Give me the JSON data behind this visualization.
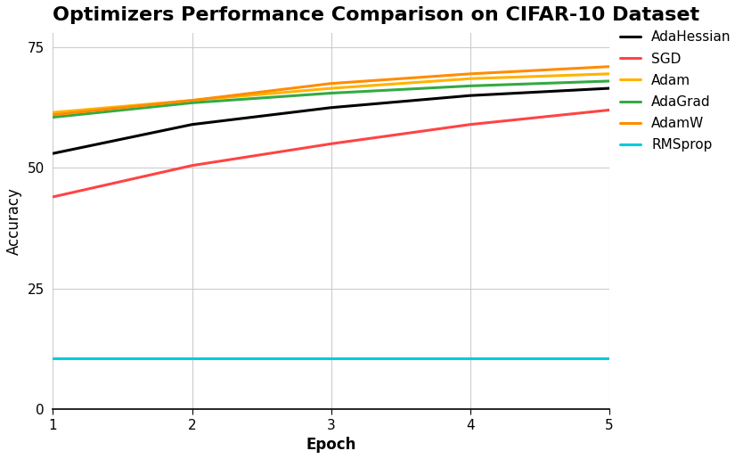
{
  "title": "Optimizers Performance Comparison on CIFAR-10 Dataset",
  "xlabel": "Epoch",
  "ylabel": "Accuracy",
  "epochs": [
    1,
    2,
    3,
    4,
    5
  ],
  "series": [
    {
      "label": "AdaHessian",
      "color": "#000000",
      "linewidth": 2.2,
      "values": [
        53.0,
        59.0,
        62.5,
        65.0,
        66.5
      ]
    },
    {
      "label": "SGD",
      "color": "#FF4444",
      "linewidth": 2.2,
      "values": [
        44.0,
        50.5,
        55.0,
        59.0,
        62.0
      ]
    },
    {
      "label": "Adam",
      "color": "#FFB300",
      "linewidth": 2.2,
      "values": [
        61.5,
        64.0,
        66.5,
        68.5,
        69.5
      ]
    },
    {
      "label": "AdaGrad",
      "color": "#33AA44",
      "linewidth": 2.2,
      "values": [
        60.5,
        63.5,
        65.5,
        67.0,
        68.0
      ]
    },
    {
      "label": "AdamW",
      "color": "#FF8C00",
      "linewidth": 2.2,
      "values": [
        61.0,
        64.0,
        67.5,
        69.5,
        71.0
      ]
    },
    {
      "label": "RMSprop",
      "color": "#00CCDD",
      "linewidth": 2.2,
      "values": [
        10.5,
        10.5,
        10.5,
        10.5,
        10.5
      ]
    }
  ],
  "xlim": [
    1,
    5
  ],
  "ylim": [
    0,
    78
  ],
  "yticks": [
    0,
    25,
    50,
    75
  ],
  "xticks": [
    1,
    2,
    3,
    4,
    5
  ],
  "grid": true,
  "title_fontsize": 16,
  "axis_label_fontsize": 12,
  "tick_fontsize": 11,
  "legend_fontsize": 11,
  "background_color": "#ffffff",
  "figure_width": 8.34,
  "figure_height": 5.15,
  "dpi": 100
}
